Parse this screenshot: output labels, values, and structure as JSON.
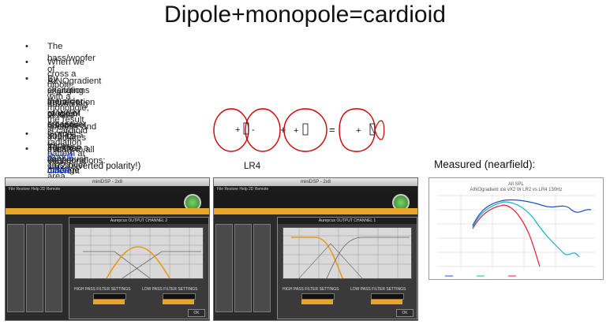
{
  "title": "Dipole+monopole=cardioid",
  "bullets": [
    "The bass/woofer of AINOgradient is a downfiring sealed speaker and it radiates evenly to all directions",
    "When we cross a dipole with a monopole, the result is cardioid radiation pattern at crossover area",
    "By changing the order of  W/LM crossover and it’s Fq, we can manage the amount of frontwall reflections and room mode",
    "excitations in the range of 50Hz to 300Hz. This has a very much different effect to the perceived sound than doing just",
    "equalization of room response!"
  ],
  "graphics_prefix": "Graphics from ",
  "graphics_link": "Rudolf Finke",
  "minidsp": "miniDSP configurations:",
  "bullet_glyph": "•",
  "diagram": {
    "plus": "+",
    "minus": "-",
    "equals": "="
  },
  "labels": {
    "lr2": "LR2 (inverted polarity!)",
    "lr4": "LR4",
    "measured": "Measured (nearfield):"
  },
  "windows": [
    {
      "title": "miniDSP - 2x8",
      "dialog": "Aurepcus OUTPUT CHANNEL 2",
      "menu": "File   Restore   Help   2D Remote",
      "hp": "HIGH PASS FILTER SETTINGS",
      "lp": "LOW PASS FILTER SETTINGS",
      "ok": "OK"
    },
    {
      "title": "miniDSP - 2x8",
      "dialog": "Aurepcus OUTPUT CHANNEL 1",
      "menu": "File   Restore   Help   2D Remote",
      "hp": "HIGH PASS FILTER SETTINGS",
      "lp": "LOW PASS FILTER SETTINGS",
      "ok": "OK"
    }
  ],
  "measure": {
    "title": "All SPL",
    "subtitle": "AINOgradient ice vX2 W LR2 vs LR4 130Hz"
  },
  "colors": {
    "accent": "#e9a52a",
    "link": "#1a3fd6",
    "cardioid": "#d00000",
    "blue": "#1f4fc4",
    "cyan": "#19b3c4",
    "red": "#e8203a"
  }
}
